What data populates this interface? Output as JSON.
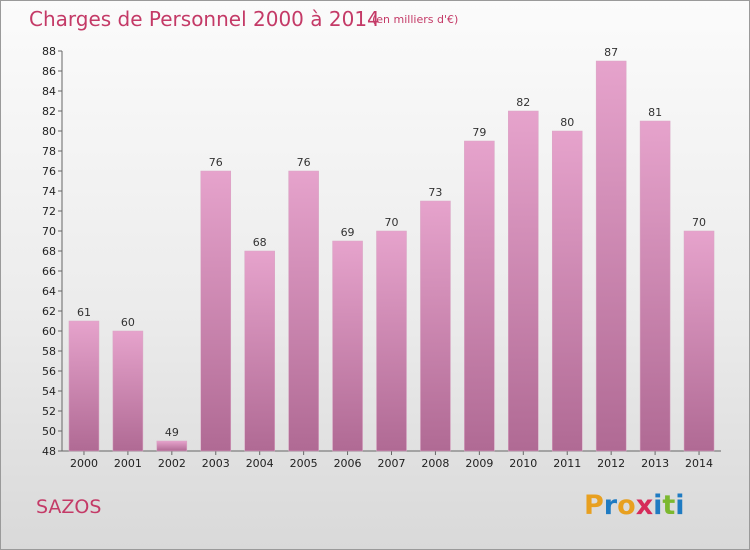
{
  "title": "Charges de Personnel 2000 à 2014",
  "subtitle": "(en milliers d'€)",
  "commune": "SAZOS",
  "logo": {
    "text": "Proxiti",
    "letters": [
      "P",
      "r",
      "o",
      "x",
      "i",
      "t",
      "i"
    ],
    "colors": [
      "#e8a020",
      "#1f7bc2",
      "#e8a020",
      "#d62b5a",
      "#1f7bc2",
      "#7cb82f",
      "#1f7bc2"
    ]
  },
  "colors": {
    "accent": "#c43a67",
    "bar_top": "#e6a3cc",
    "bar_bottom": "#b06a94"
  },
  "chart_data": {
    "type": "bar",
    "categories": [
      "2000",
      "2001",
      "2002",
      "2003",
      "2004",
      "2005",
      "2006",
      "2007",
      "2008",
      "2009",
      "2010",
      "2011",
      "2012",
      "2013",
      "2014"
    ],
    "values": [
      61,
      60,
      49,
      76,
      68,
      76,
      69,
      70,
      73,
      79,
      82,
      80,
      87,
      81,
      70
    ],
    "title": "Charges de Personnel 2000 à 2014",
    "ylim": [
      48,
      88
    ],
    "yticks": [
      48,
      50,
      52,
      54,
      56,
      58,
      60,
      62,
      64,
      66,
      68,
      70,
      72,
      74,
      76,
      78,
      80,
      82,
      84,
      86,
      88
    ],
    "grid": false,
    "legend": "none"
  }
}
